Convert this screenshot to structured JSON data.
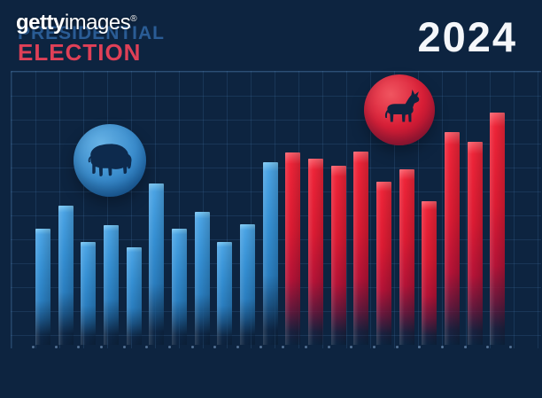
{
  "watermark": {
    "brand_bold": "getty",
    "brand_regular": "images",
    "registered": "®"
  },
  "title": {
    "line1": "PRESIDENTIAL",
    "line2": "ELECTION",
    "year": "2024"
  },
  "colors": {
    "background": "#0d2440",
    "blue_bar": "#3590d4",
    "red_bar": "#dc1b33",
    "title_blue": "#2a5c95",
    "title_red": "#df4057",
    "year_white": "#f5f7fa",
    "blue_circle": "#3a8ccc",
    "red_circle": "#d91f37",
    "silhouette_navy": "#0d2a4d",
    "grid_line": "#4a7db4"
  },
  "icons": {
    "elephant": "republican-elephant-icon",
    "donkey": "democrat-donkey-icon"
  },
  "chart_data": {
    "type": "bar",
    "title": "PRESIDENTIAL ELECTION 2024",
    "xlabel": "",
    "ylabel": "",
    "axis_tick_labels_visible": false,
    "legend": false,
    "grid": true,
    "units": "pixel-height (no numeric axis shown in image)",
    "bars": [
      {
        "party": "blue",
        "value": 131
      },
      {
        "party": "blue",
        "value": 157
      },
      {
        "party": "blue",
        "value": 116
      },
      {
        "party": "blue",
        "value": 135
      },
      {
        "party": "blue",
        "value": 110
      },
      {
        "party": "blue",
        "value": 182
      },
      {
        "party": "blue",
        "value": 131
      },
      {
        "party": "blue",
        "value": 150
      },
      {
        "party": "blue",
        "value": 116
      },
      {
        "party": "blue",
        "value": 136
      },
      {
        "party": "blue",
        "value": 206
      },
      {
        "party": "red",
        "value": 217
      },
      {
        "party": "red",
        "value": 210
      },
      {
        "party": "red",
        "value": 202
      },
      {
        "party": "red",
        "value": 218
      },
      {
        "party": "red",
        "value": 184
      },
      {
        "party": "red",
        "value": 198
      },
      {
        "party": "red",
        "value": 162
      },
      {
        "party": "red",
        "value": 240
      },
      {
        "party": "red",
        "value": 229
      },
      {
        "party": "red",
        "value": 262
      }
    ],
    "axis_dot_count": 22
  }
}
